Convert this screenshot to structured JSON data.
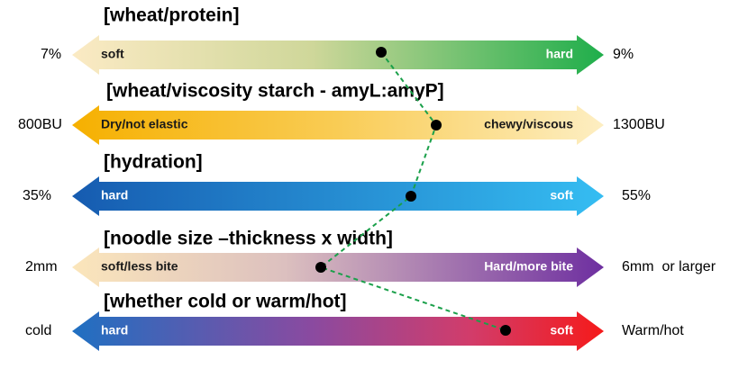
{
  "rows": [
    {
      "title": "[wheat/protein]",
      "left_value": "7%",
      "right_value": "9%",
      "left_label": "soft",
      "right_label": "hard"
    },
    {
      "title": "[wheat/viscosity starch - amyL:amyP]",
      "left_value": "800BU",
      "right_value": "1300BU",
      "left_label": "Dry/not elastic",
      "right_label": "chewy/viscous"
    },
    {
      "title": "[hydration]",
      "left_value": "35%",
      "right_value": "55%",
      "left_label": "hard",
      "right_label": "soft"
    },
    {
      "title": "[noodle size –thickness x width]",
      "left_value": "2mm",
      "right_value": "6mm  or larger",
      "left_label": "soft/less bite",
      "right_label": "Hard/more bite"
    },
    {
      "title": "[whether cold or warm/hot]",
      "left_value": "cold",
      "right_value": "Warm/hot",
      "left_label": "hard",
      "right_label": "soft"
    }
  ]
}
